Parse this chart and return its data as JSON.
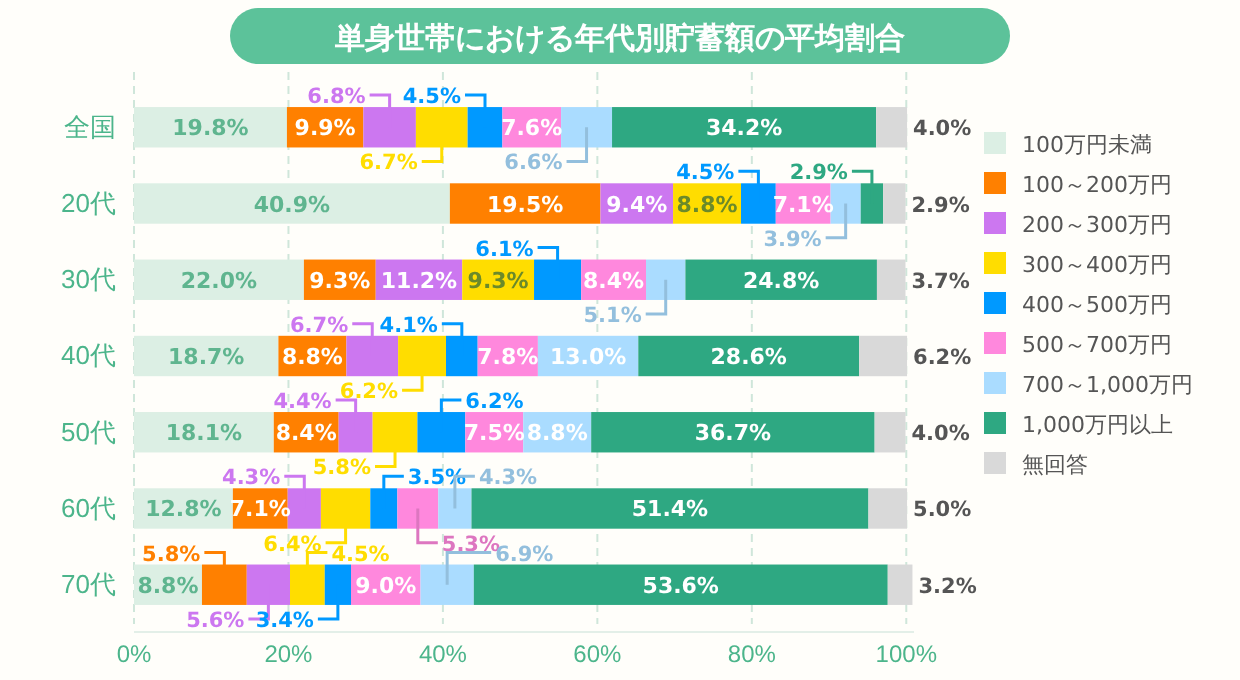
{
  "chart_data": {
    "type": "bar",
    "orientation": "horizontal",
    "stacked": true,
    "title": "単身世帯における年代別貯蓄額の平均割合",
    "categories": [
      "全国",
      "20代",
      "30代",
      "40代",
      "50代",
      "60代",
      "70代"
    ],
    "xlim": [
      0,
      101
    ],
    "xticks": [
      {
        "value": 0,
        "label": "0%"
      },
      {
        "value": 20,
        "label": "20%"
      },
      {
        "value": 40,
        "label": "40%"
      },
      {
        "value": 60,
        "label": "60%"
      },
      {
        "value": 80,
        "label": "80%"
      },
      {
        "value": 100,
        "label": "100%"
      }
    ],
    "grid": "x",
    "legend": "right",
    "series": [
      {
        "name": "100万円未満",
        "color": "#dcefe4",
        "values": [
          19.8,
          40.9,
          22.0,
          18.7,
          18.1,
          12.8,
          8.8
        ],
        "value_labels": [
          "19.8%",
          "40.9%",
          "22.0%",
          "18.7%",
          "18.1%",
          "12.8%",
          "8.8%"
        ]
      },
      {
        "name": "100～200万円",
        "color": "#ff8000",
        "values": [
          9.9,
          19.5,
          9.3,
          8.8,
          8.4,
          7.1,
          5.8
        ],
        "value_labels": [
          "9.9%",
          "19.5%",
          "9.3%",
          "8.8%",
          "8.4%",
          "7.1%",
          "5.8%"
        ]
      },
      {
        "name": "200～300万円",
        "color": "#cc77f0",
        "values": [
          6.8,
          9.4,
          11.2,
          6.7,
          4.4,
          4.3,
          5.6
        ],
        "value_labels": [
          "6.8%",
          "9.4%",
          "11.2%",
          "6.7%",
          "4.4%",
          "4.3%",
          "5.6%"
        ]
      },
      {
        "name": "300～400万円",
        "color": "#ffdd00",
        "values": [
          6.7,
          8.8,
          9.3,
          6.2,
          5.8,
          6.4,
          4.5
        ],
        "value_labels": [
          "6.7%",
          "8.8%",
          "9.3%",
          "6.2%",
          "5.8%",
          "6.4%",
          "4.5%"
        ]
      },
      {
        "name": "400～500万円",
        "color": "#0099ff",
        "values": [
          4.5,
          4.5,
          6.1,
          4.1,
          6.2,
          3.5,
          3.4
        ],
        "value_labels": [
          "4.5%",
          "4.5%",
          "6.1%",
          "4.1%",
          "6.2%",
          "3.5%",
          "3.4%"
        ]
      },
      {
        "name": "500～700万円",
        "color": "#ff88dd",
        "values": [
          7.6,
          7.1,
          8.4,
          7.8,
          7.5,
          5.3,
          9.0
        ],
        "value_labels": [
          "7.6%",
          "7.1%",
          "8.4%",
          "7.8%",
          "7.5%",
          "5.3%",
          "9.0%"
        ]
      },
      {
        "name": "700～1,000万円",
        "color": "#aadcff",
        "values": [
          6.6,
          3.9,
          5.1,
          13.0,
          8.8,
          4.3,
          6.9
        ],
        "value_labels": [
          "6.6%",
          "3.9%",
          "5.1%",
          "13.0%",
          "8.8%",
          "4.3%",
          "6.9%"
        ]
      },
      {
        "name": "1,000万円以上",
        "color": "#2ea882",
        "values": [
          34.2,
          2.9,
          24.8,
          28.6,
          36.7,
          51.4,
          53.6
        ],
        "value_labels": [
          "34.2%",
          "2.9%",
          "24.8%",
          "28.6%",
          "36.7%",
          "51.4%",
          "53.6%"
        ]
      },
      {
        "name": "無回答",
        "color": "#d9d9d9",
        "values": [
          4.0,
          2.9,
          3.7,
          6.2,
          4.0,
          5.0,
          3.2
        ],
        "value_labels": [
          "4.0%",
          "2.9%",
          "3.7%",
          "6.2%",
          "4.0%",
          "5.0%",
          "3.2%"
        ]
      }
    ]
  }
}
